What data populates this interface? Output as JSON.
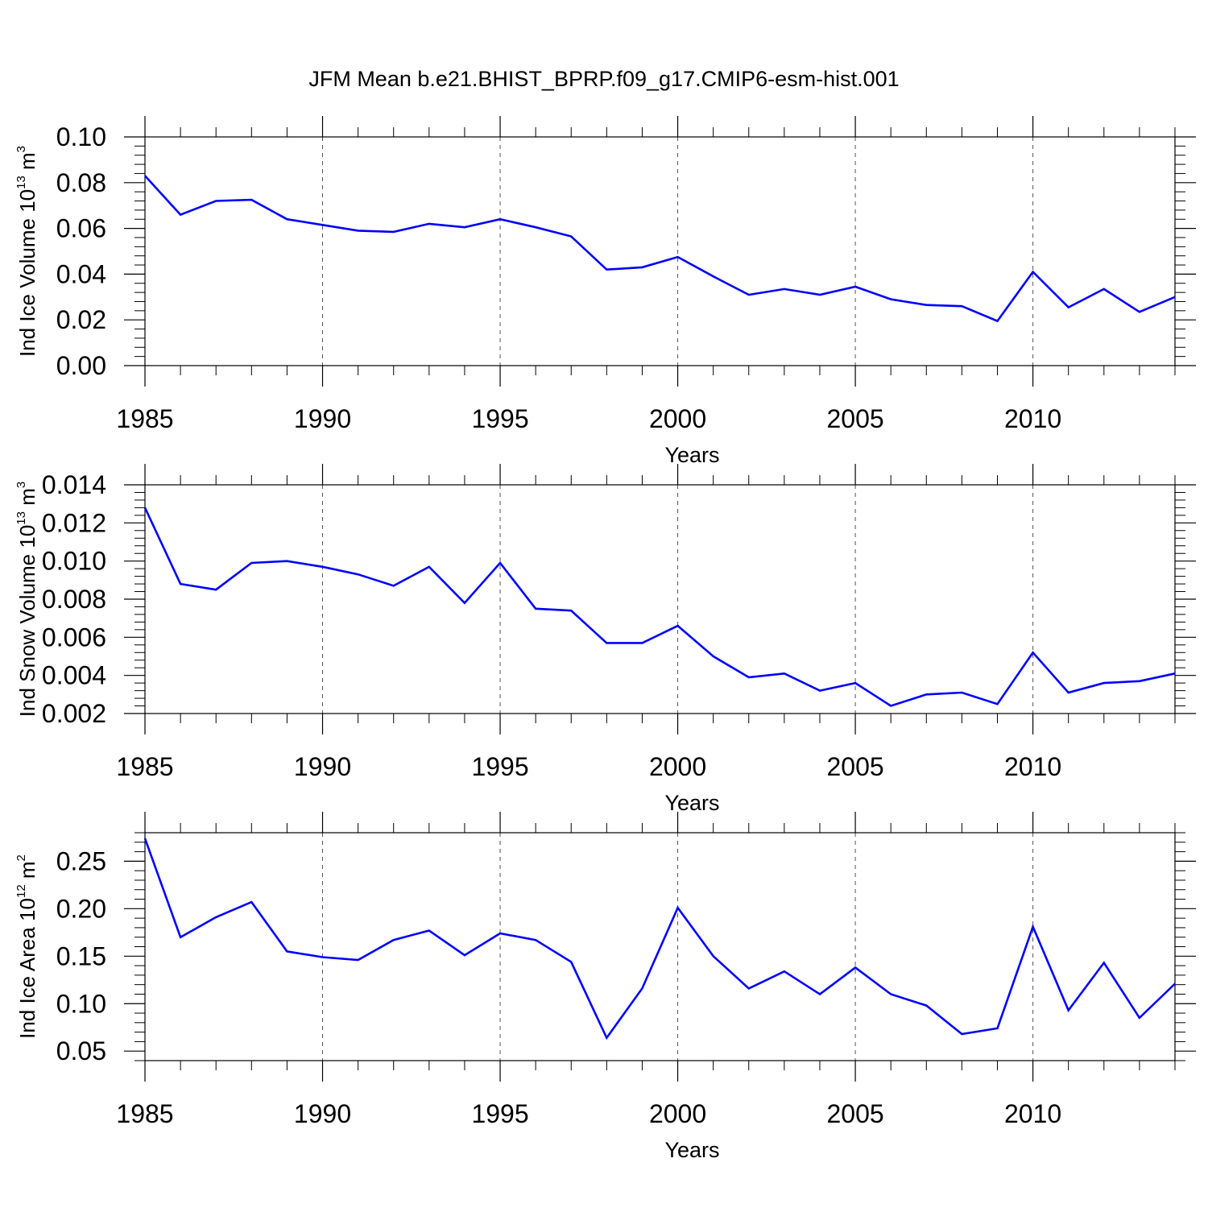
{
  "figure": {
    "title": "JFM Mean b.e21.BHIST_BPRP.f09_g17.CMIP6-esm-hist.001"
  },
  "chart_data": [
    {
      "type": "line",
      "ylabel": {
        "text": "Ind Ice Volume 10",
        "sup": "13",
        "unit": " m",
        "unit_sup": "3"
      },
      "xlabel": "Years",
      "xlim": [
        1985,
        2014
      ],
      "ylim": [
        0.0,
        0.1
      ],
      "yticks": [
        "0.00",
        "0.02",
        "0.04",
        "0.06",
        "0.08",
        "0.10"
      ],
      "ytick_values": [
        0.0,
        0.02,
        0.04,
        0.06,
        0.08,
        0.1
      ],
      "xticks": [
        "1985",
        "1990",
        "1995",
        "2000",
        "2005",
        "2010"
      ],
      "xtick_values": [
        1985,
        1990,
        1995,
        2000,
        2005,
        2010
      ],
      "grid": "vertical dashed at major x ticks",
      "color": "#0000ff",
      "series": [
        {
          "name": "Ind Ice Volume",
          "x": [
            1985,
            1986,
            1987,
            1988,
            1989,
            1990,
            1991,
            1992,
            1993,
            1994,
            1995,
            1996,
            1997,
            1998,
            1999,
            2000,
            2001,
            2002,
            2003,
            2004,
            2005,
            2006,
            2007,
            2008,
            2009,
            2010,
            2011,
            2012,
            2013,
            2014
          ],
          "values": [
            0.083,
            0.066,
            0.072,
            0.0725,
            0.064,
            0.0615,
            0.059,
            0.0585,
            0.062,
            0.0605,
            0.064,
            0.0605,
            0.0565,
            0.042,
            0.043,
            0.0475,
            0.039,
            0.031,
            0.0335,
            0.031,
            0.0345,
            0.029,
            0.0265,
            0.026,
            0.0195,
            0.041,
            0.0255,
            0.0335,
            0.0235,
            0.03
          ]
        }
      ]
    },
    {
      "type": "line",
      "ylabel": {
        "text": "Ind Snow Volume 10",
        "sup": "13",
        "unit": " m",
        "unit_sup": "3"
      },
      "xlabel": "Years",
      "xlim": [
        1985,
        2014
      ],
      "ylim": [
        0.002,
        0.014
      ],
      "yticks": [
        "0.002",
        "0.004",
        "0.006",
        "0.008",
        "0.010",
        "0.012",
        "0.014"
      ],
      "ytick_values": [
        0.002,
        0.004,
        0.006,
        0.008,
        0.01,
        0.012,
        0.014
      ],
      "xticks": [
        "1985",
        "1990",
        "1995",
        "2000",
        "2005",
        "2010"
      ],
      "xtick_values": [
        1985,
        1990,
        1995,
        2000,
        2005,
        2010
      ],
      "grid": "vertical dashed at major x ticks",
      "color": "#0000ff",
      "series": [
        {
          "name": "Ind Snow Volume",
          "x": [
            1985,
            1986,
            1987,
            1988,
            1989,
            1990,
            1991,
            1992,
            1993,
            1994,
            1995,
            1996,
            1997,
            1998,
            1999,
            2000,
            2001,
            2002,
            2003,
            2004,
            2005,
            2006,
            2007,
            2008,
            2009,
            2010,
            2011,
            2012,
            2013,
            2014
          ],
          "values": [
            0.0128,
            0.0088,
            0.0085,
            0.0099,
            0.01,
            0.0097,
            0.0093,
            0.0087,
            0.0097,
            0.0078,
            0.0099,
            0.0075,
            0.0074,
            0.0057,
            0.0057,
            0.0066,
            0.005,
            0.0039,
            0.0041,
            0.0032,
            0.0036,
            0.0024,
            0.003,
            0.0031,
            0.0025,
            0.0052,
            0.0031,
            0.0036,
            0.0037,
            0.0041
          ]
        }
      ]
    },
    {
      "type": "line",
      "ylabel": {
        "text": "Ind Ice Area 10",
        "sup": "12",
        "unit": " m",
        "unit_sup": "2"
      },
      "xlabel": "Years",
      "xlim": [
        1985,
        2014
      ],
      "ylim": [
        0.04,
        0.28
      ],
      "yticks": [
        "0.05",
        "0.10",
        "0.15",
        "0.20",
        "0.25"
      ],
      "ytick_values": [
        0.05,
        0.1,
        0.15,
        0.2,
        0.25
      ],
      "xticks": [
        "1985",
        "1990",
        "1995",
        "2000",
        "2005",
        "2010"
      ],
      "xtick_values": [
        1985,
        1990,
        1995,
        2000,
        2005,
        2010
      ],
      "grid": "vertical dashed at major x ticks",
      "color": "#0000ff",
      "series": [
        {
          "name": "Ind Ice Area",
          "x": [
            1985,
            1986,
            1987,
            1988,
            1989,
            1990,
            1991,
            1992,
            1993,
            1994,
            1995,
            1996,
            1997,
            1998,
            1999,
            2000,
            2001,
            2002,
            2003,
            2004,
            2005,
            2006,
            2007,
            2008,
            2009,
            2010,
            2011,
            2012,
            2013,
            2014
          ],
          "values": [
            0.274,
            0.17,
            0.191,
            0.207,
            0.155,
            0.149,
            0.146,
            0.167,
            0.177,
            0.151,
            0.174,
            0.167,
            0.144,
            0.064,
            0.116,
            0.201,
            0.15,
            0.116,
            0.134,
            0.11,
            0.138,
            0.11,
            0.098,
            0.068,
            0.074,
            0.181,
            0.093,
            0.143,
            0.085,
            0.121
          ]
        }
      ]
    }
  ]
}
